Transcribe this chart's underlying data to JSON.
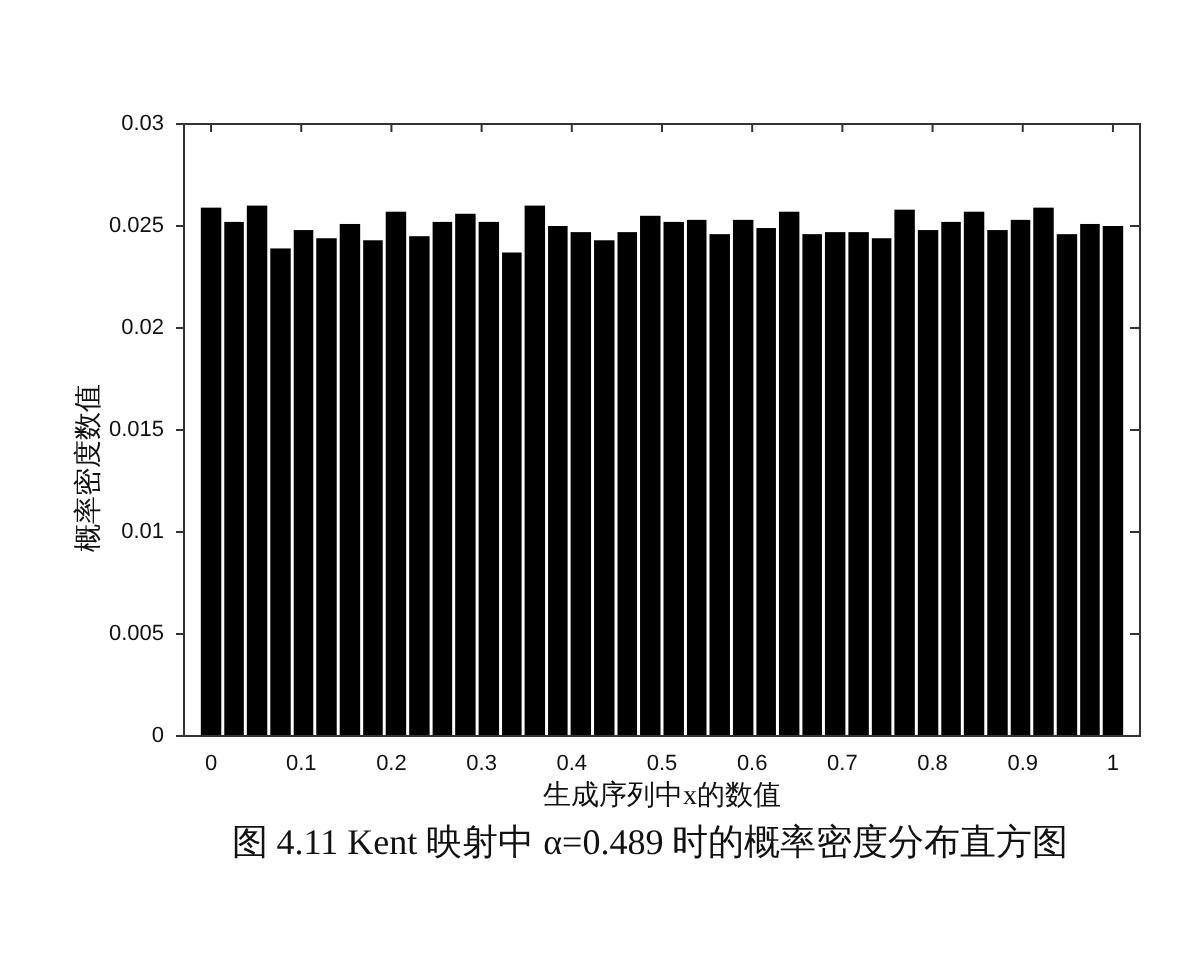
{
  "chart_data": {
    "type": "histogram",
    "title": "图 4.11 Kent 映射中 α=0.489 时的概率密度分布直方图",
    "xlabel": "生成序列中x的数值",
    "ylabel": "概率密度数值",
    "bins": [
      -0.013,
      0.013,
      0.038,
      0.064,
      0.09,
      0.115,
      0.141,
      0.167,
      0.192,
      0.218,
      0.244,
      0.269,
      0.295,
      0.321,
      0.346,
      0.372,
      0.397,
      0.423,
      0.449,
      0.474,
      0.5,
      0.526,
      0.551,
      0.577,
      0.603,
      0.628,
      0.654,
      0.679,
      0.705,
      0.731,
      0.756,
      0.782,
      0.808,
      0.833,
      0.859,
      0.885,
      0.91,
      0.936,
      0.962,
      0.987,
      1.013
    ],
    "values": [
      0.0259,
      0.0252,
      0.026,
      0.0239,
      0.0248,
      0.0244,
      0.0251,
      0.0243,
      0.0257,
      0.0245,
      0.0252,
      0.0256,
      0.0252,
      0.0237,
      0.026,
      0.025,
      0.0247,
      0.0243,
      0.0247,
      0.0255,
      0.0252,
      0.0253,
      0.0246,
      0.0253,
      0.0249,
      0.0257,
      0.0246,
      0.0247,
      0.0247,
      0.0244,
      0.0258,
      0.0248,
      0.0252,
      0.0257,
      0.0248,
      0.0253,
      0.0259,
      0.0246,
      0.0251,
      0.025
    ],
    "color": "#000000",
    "xlim": [
      -0.03,
      1.03
    ],
    "ylim": [
      0,
      0.03
    ],
    "xticks": [
      0,
      0.1,
      0.2,
      0.3,
      0.4,
      0.5,
      0.6,
      0.7,
      0.8,
      0.9,
      1
    ],
    "yticks": [
      0,
      0.005,
      0.01,
      0.015,
      0.02,
      0.025,
      0.03
    ]
  }
}
